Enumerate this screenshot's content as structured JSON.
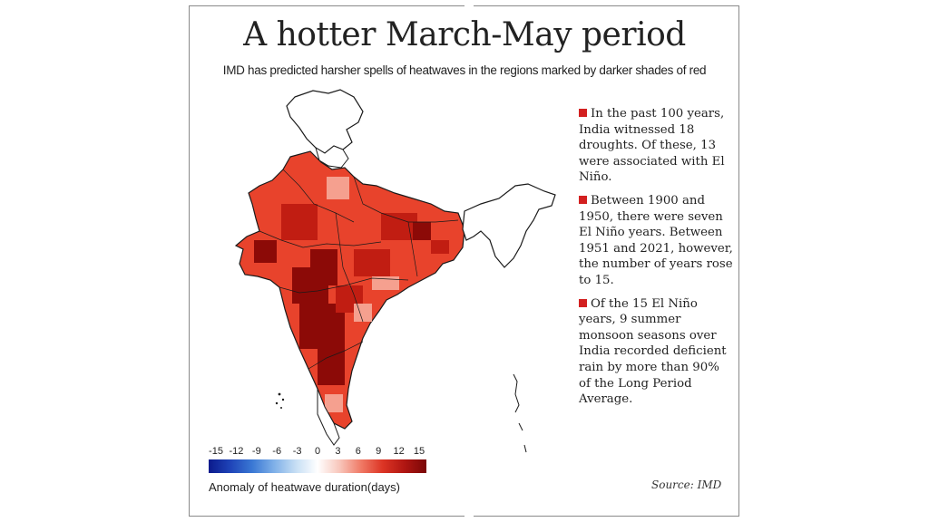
{
  "title": "A hotter March-May period",
  "subtitle": "IMD has predicted harsher spells of heatwaves in the regions marked by darker shades of red",
  "notes": [
    "In the past 100 years, India witnessed 18 droughts. Of these, 13 were associated with El Niño.",
    "Between 1900 and 1950, there were seven El Niño years. Between 1951 and 2021, however, the number of years rose to 15.",
    "Of the 15 El Niño years, 9 summer monsoon seasons over India recorded deficient rain by more than 90% of the Long Period Average."
  ],
  "legend": {
    "label": "Anomaly of heatwave duration(days)",
    "ticks": [
      "-15",
      "-12",
      "-9",
      "-6",
      "-3",
      "0",
      "3",
      "6",
      "9",
      "12",
      "15"
    ],
    "colors": [
      "#0b1a8c",
      "#1f44b8",
      "#3a78d4",
      "#7fb0e8",
      "#c6def4",
      "#ffffff",
      "#f8c7bc",
      "#f07a66",
      "#dc3424",
      "#b01612",
      "#7a0707"
    ]
  },
  "map": {
    "outline_color": "#1a1a1a",
    "fill_colors": {
      "light": "#f5a08f",
      "mid": "#e8432c",
      "dark": "#c11d12",
      "darkest": "#8c0a07"
    }
  },
  "source": "Source: IMD"
}
